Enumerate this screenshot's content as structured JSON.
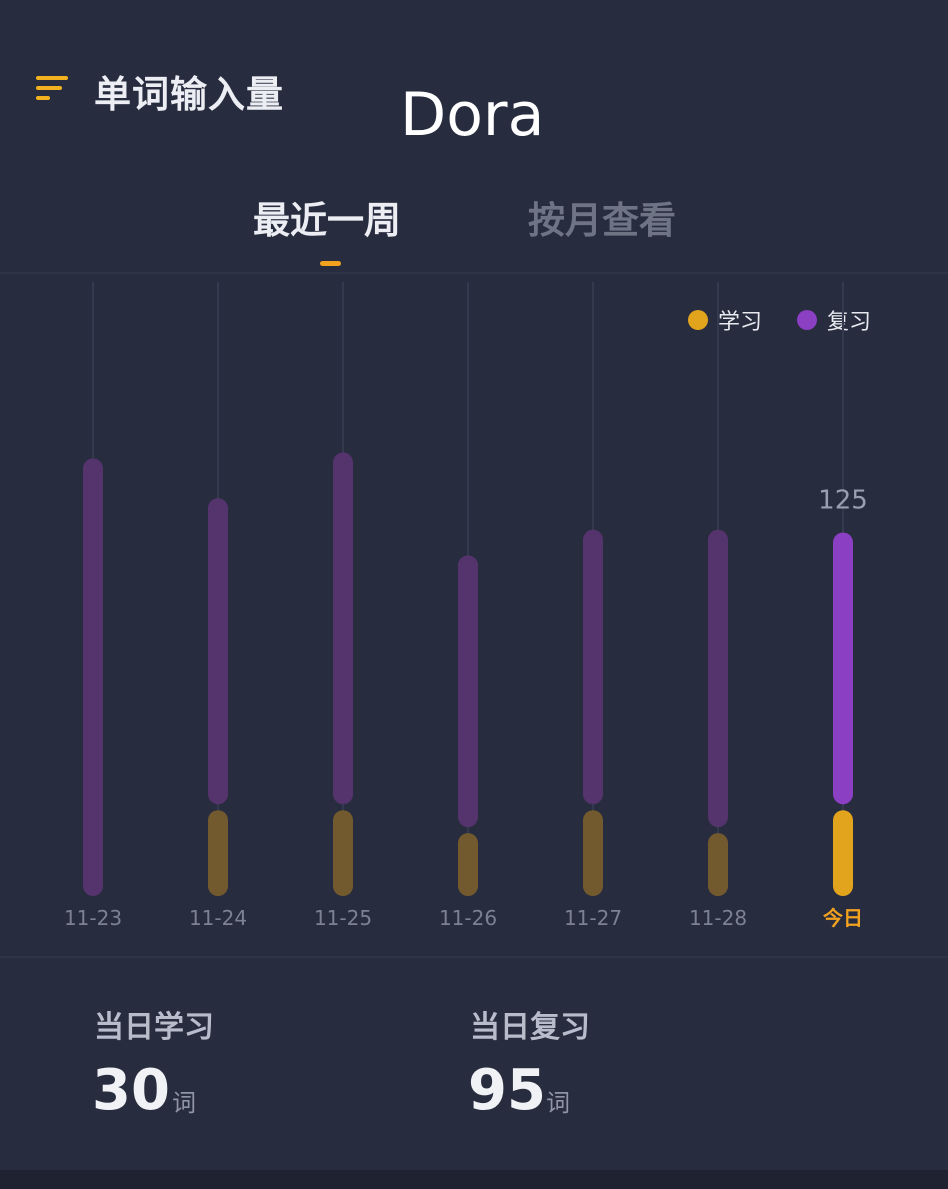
{
  "header": {
    "title": "单词输入量",
    "watermark": "Dora"
  },
  "tabs": [
    {
      "label": "最近一周",
      "active": true
    },
    {
      "label": "按月查看",
      "active": false
    }
  ],
  "legend": [
    {
      "label": "学习",
      "color": "#e2a41c"
    },
    {
      "label": "复习",
      "color": "#8b3fc2"
    }
  ],
  "colors": {
    "study_faded": "#735a2e",
    "review_faded": "#55336c",
    "study_active": "#e2a41c",
    "review_active": "#8b3fc2",
    "today_label": "#f2a21f",
    "date_label": "#7c8193",
    "value_label": "#9a9fb0"
  },
  "chart_data": {
    "type": "bar",
    "stacked": true,
    "categories": [
      "11-23",
      "11-24",
      "11-25",
      "11-26",
      "11-27",
      "11-28",
      "今日"
    ],
    "series": [
      {
        "name": "学习",
        "values": [
          0,
          30,
          30,
          22,
          30,
          22,
          30
        ]
      },
      {
        "name": "复习",
        "values": [
          153,
          107,
          123,
          95,
          96,
          104,
          95
        ]
      }
    ],
    "highlighted_index": 6,
    "highlighted_total_label": "125"
  },
  "stats": {
    "study": {
      "label": "当日学习",
      "value": "30",
      "unit": "词"
    },
    "review": {
      "label": "当日复习",
      "value": "95",
      "unit": "词"
    }
  }
}
